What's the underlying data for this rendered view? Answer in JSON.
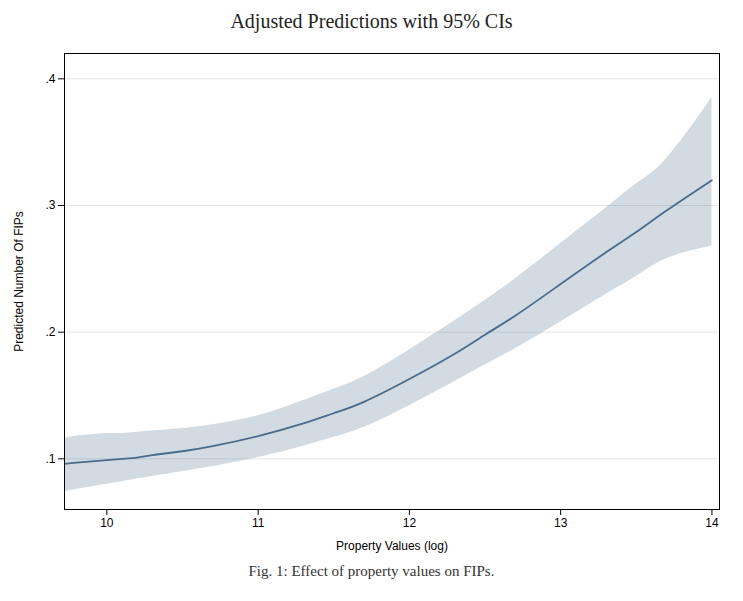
{
  "chart_data": {
    "type": "line",
    "title": "Adjusted Predictions with 95% CIs",
    "xlabel": "Property Values (log)",
    "ylabel": "Predicted Number Of FIPs",
    "caption": "Fig. 1: Effect of property values on FIPs.",
    "x": [
      9.72,
      9.8,
      9.9,
      10.0,
      10.1,
      10.2,
      10.3,
      10.5,
      10.7,
      11.0,
      11.3,
      11.5,
      11.7,
      12.0,
      12.3,
      12.5,
      12.7,
      13.0,
      13.3,
      13.5,
      13.7,
      14.0
    ],
    "values": [
      0.096,
      0.097,
      0.098,
      0.099,
      0.1,
      0.101,
      0.103,
      0.106,
      0.11,
      0.118,
      0.128,
      0.136,
      0.145,
      0.163,
      0.183,
      0.198,
      0.213,
      0.238,
      0.263,
      0.279,
      0.296,
      0.32
    ],
    "ci_lower": [
      0.074,
      0.076,
      0.078,
      0.08,
      0.082,
      0.084,
      0.086,
      0.09,
      0.094,
      0.101,
      0.11,
      0.117,
      0.125,
      0.142,
      0.161,
      0.174,
      0.187,
      0.208,
      0.23,
      0.244,
      0.258,
      0.268
    ],
    "ci_upper": [
      0.116,
      0.118,
      0.119,
      0.12,
      0.12,
      0.121,
      0.122,
      0.124,
      0.127,
      0.134,
      0.146,
      0.155,
      0.165,
      0.186,
      0.209,
      0.225,
      0.242,
      0.27,
      0.298,
      0.317,
      0.337,
      0.385
    ],
    "color": "#4a6b8a",
    "xlim": [
      9.72,
      14.05
    ],
    "ylim": [
      0.06,
      0.42
    ],
    "xticks": [
      10,
      11,
      12,
      13,
      14
    ],
    "yticks": [
      {
        "value": 0.1,
        "label": ".1"
      },
      {
        "value": 0.2,
        "label": ".2"
      },
      {
        "value": 0.3,
        "label": ".3"
      },
      {
        "value": 0.4,
        "label": ".4"
      }
    ],
    "grid": true
  }
}
